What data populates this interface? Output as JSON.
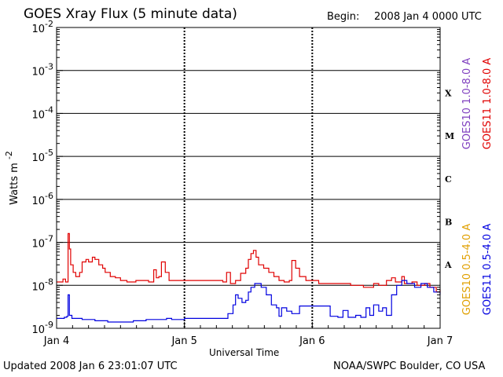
{
  "header": {
    "title": "GOES Xray Flux (5 minute data)",
    "begin_label": "Begin:",
    "begin_value": "2008 Jan 4 0000 UTC"
  },
  "footer": {
    "updated": "Updated 2008 Jan  6 23:01:07 UTC",
    "source": "NOAA/SWPC Boulder, CO USA"
  },
  "chart_data": {
    "type": "line",
    "title": "GOES Xray Flux (5 minute data)",
    "xlabel": "Universal Time",
    "ylabel": "Watts m",
    "ylabel_exp": "-2",
    "y_scale": "log",
    "ylim": [
      1e-09,
      0.01
    ],
    "x_ticks": [
      "Jan 4",
      "Jan 5",
      "Jan 6",
      "Jan 7"
    ],
    "xlim_days": [
      4,
      7
    ],
    "y_ticks": [
      {
        "base": "10",
        "exp": "-2",
        "value": 0.01
      },
      {
        "base": "10",
        "exp": "-3",
        "value": 0.001
      },
      {
        "base": "10",
        "exp": "-4",
        "value": 0.0001
      },
      {
        "base": "10",
        "exp": "-5",
        "value": 1e-05
      },
      {
        "base": "10",
        "exp": "-6",
        "value": 1e-06
      },
      {
        "base": "10",
        "exp": "-7",
        "value": 1e-07
      },
      {
        "base": "10",
        "exp": "-8",
        "value": 1e-08
      },
      {
        "base": "10",
        "exp": "-9",
        "value": 1e-09
      }
    ],
    "flare_classes": [
      {
        "label": "X",
        "value": 0.0003
      },
      {
        "label": "M",
        "value": 3e-05
      },
      {
        "label": "C",
        "value": 3e-06
      },
      {
        "label": "B",
        "value": 3e-07
      },
      {
        "label": "A",
        "value": 3e-08
      }
    ],
    "legend": [
      {
        "name": "GOES10 1.0-8.0 A",
        "color": "#7f3fbf"
      },
      {
        "name": "GOES11 1.0-8.0 A",
        "color": "#e00000"
      },
      {
        "name": "GOES10 0.5-4.0 A",
        "color": "#e0a000"
      },
      {
        "name": "GOES11 0.5-4.0 A",
        "color": "#0000e0"
      }
    ],
    "series": [
      {
        "name": "GOES11 1.0-8.0 A",
        "color": "#e00000",
        "points": [
          [
            4.0,
            1.2e-08
          ],
          [
            4.04,
            1.2e-08
          ],
          [
            4.05,
            1.4e-08
          ],
          [
            4.07,
            1.2e-08
          ],
          [
            4.09,
            1.6e-07
          ],
          [
            4.1,
            7e-08
          ],
          [
            4.11,
            3e-08
          ],
          [
            4.13,
            2e-08
          ],
          [
            4.15,
            1.6e-08
          ],
          [
            4.18,
            2e-08
          ],
          [
            4.2,
            3.5e-08
          ],
          [
            4.23,
            4e-08
          ],
          [
            4.25,
            3.5e-08
          ],
          [
            4.28,
            4.5e-08
          ],
          [
            4.3,
            4e-08
          ],
          [
            4.33,
            3e-08
          ],
          [
            4.36,
            2.5e-08
          ],
          [
            4.38,
            2e-08
          ],
          [
            4.42,
            1.6e-08
          ],
          [
            4.46,
            1.5e-08
          ],
          [
            4.5,
            1.3e-08
          ],
          [
            4.55,
            1.2e-08
          ],
          [
            4.62,
            1.3e-08
          ],
          [
            4.72,
            1.2e-08
          ],
          [
            4.76,
            2.3e-08
          ],
          [
            4.78,
            1.5e-08
          ],
          [
            4.8,
            1.6e-08
          ],
          [
            4.82,
            3.5e-08
          ],
          [
            4.85,
            2e-08
          ],
          [
            4.88,
            1.3e-08
          ],
          [
            5.0,
            1.3e-08
          ],
          [
            5.3,
            1.2e-08
          ],
          [
            5.33,
            2e-08
          ],
          [
            5.36,
            1.1e-08
          ],
          [
            5.4,
            1.3e-08
          ],
          [
            5.44,
            1.9e-08
          ],
          [
            5.48,
            2.5e-08
          ],
          [
            5.5,
            4e-08
          ],
          [
            5.52,
            5.5e-08
          ],
          [
            5.54,
            6.5e-08
          ],
          [
            5.56,
            4.5e-08
          ],
          [
            5.58,
            3e-08
          ],
          [
            5.62,
            2.5e-08
          ],
          [
            5.66,
            2e-08
          ],
          [
            5.7,
            1.6e-08
          ],
          [
            5.74,
            1.3e-08
          ],
          [
            5.78,
            1.2e-08
          ],
          [
            5.82,
            1.3e-08
          ],
          [
            5.84,
            3.8e-08
          ],
          [
            5.87,
            2.5e-08
          ],
          [
            5.9,
            1.6e-08
          ],
          [
            5.95,
            1.3e-08
          ],
          [
            6.05,
            1.1e-08
          ],
          [
            6.2,
            1.1e-08
          ],
          [
            6.3,
            1e-08
          ],
          [
            6.4,
            9e-09
          ],
          [
            6.48,
            1.1e-08
          ],
          [
            6.52,
            1e-08
          ],
          [
            6.58,
            1.3e-08
          ],
          [
            6.62,
            1.5e-08
          ],
          [
            6.65,
            1.2e-08
          ],
          [
            6.7,
            1.6e-08
          ],
          [
            6.72,
            1.1e-08
          ],
          [
            6.78,
            1.2e-08
          ],
          [
            6.82,
            1e-08
          ],
          [
            6.88,
            1.1e-08
          ],
          [
            6.92,
            9e-09
          ],
          [
            6.97,
            7e-09
          ],
          [
            7.0,
            8e-09
          ]
        ]
      },
      {
        "name": "GOES11 0.5-4.0 A",
        "color": "#0000e0",
        "points": [
          [
            4.0,
            1.7e-09
          ],
          [
            4.04,
            1.7e-09
          ],
          [
            4.06,
            1.8e-09
          ],
          [
            4.08,
            1.9e-09
          ],
          [
            4.09,
            6e-09
          ],
          [
            4.1,
            2e-09
          ],
          [
            4.12,
            1.7e-09
          ],
          [
            4.2,
            1.6e-09
          ],
          [
            4.3,
            1.5e-09
          ],
          [
            4.4,
            1.4e-09
          ],
          [
            4.5,
            1.4e-09
          ],
          [
            4.6,
            1.5e-09
          ],
          [
            4.7,
            1.6e-09
          ],
          [
            4.8,
            1.6e-09
          ],
          [
            4.86,
            1.7e-09
          ],
          [
            4.9,
            1.6e-09
          ],
          [
            5.0,
            1.7e-09
          ],
          [
            5.15,
            1.7e-09
          ],
          [
            5.3,
            1.7e-09
          ],
          [
            5.34,
            2.2e-09
          ],
          [
            5.38,
            3.5e-09
          ],
          [
            5.4,
            6e-09
          ],
          [
            5.42,
            5e-09
          ],
          [
            5.45,
            4e-09
          ],
          [
            5.48,
            4.5e-09
          ],
          [
            5.5,
            7e-09
          ],
          [
            5.52,
            9e-09
          ],
          [
            5.55,
            1.1e-08
          ],
          [
            5.6,
            9e-09
          ],
          [
            5.64,
            6e-09
          ],
          [
            5.68,
            3.5e-09
          ],
          [
            5.72,
            3e-09
          ],
          [
            5.74,
            1.9e-09
          ],
          [
            5.76,
            3e-09
          ],
          [
            5.8,
            2.5e-09
          ],
          [
            5.84,
            2.2e-09
          ],
          [
            5.9,
            3.3e-09
          ],
          [
            6.0,
            3.3e-09
          ],
          [
            6.1,
            3.3e-09
          ],
          [
            6.14,
            1.9e-09
          ],
          [
            6.2,
            1.8e-09
          ],
          [
            6.24,
            2.6e-09
          ],
          [
            6.28,
            1.8e-09
          ],
          [
            6.34,
            2e-09
          ],
          [
            6.38,
            1.8e-09
          ],
          [
            6.42,
            3e-09
          ],
          [
            6.45,
            2e-09
          ],
          [
            6.48,
            3.5e-09
          ],
          [
            6.52,
            2.5e-09
          ],
          [
            6.55,
            3e-09
          ],
          [
            6.58,
            2e-09
          ],
          [
            6.62,
            6e-09
          ],
          [
            6.66,
            1e-08
          ],
          [
            6.7,
            1.3e-08
          ],
          [
            6.74,
            1.1e-08
          ],
          [
            6.8,
            9e-09
          ],
          [
            6.85,
            1.1e-08
          ],
          [
            6.9,
            9e-09
          ],
          [
            6.95,
            7e-09
          ],
          [
            7.0,
            6e-09
          ]
        ]
      }
    ]
  }
}
